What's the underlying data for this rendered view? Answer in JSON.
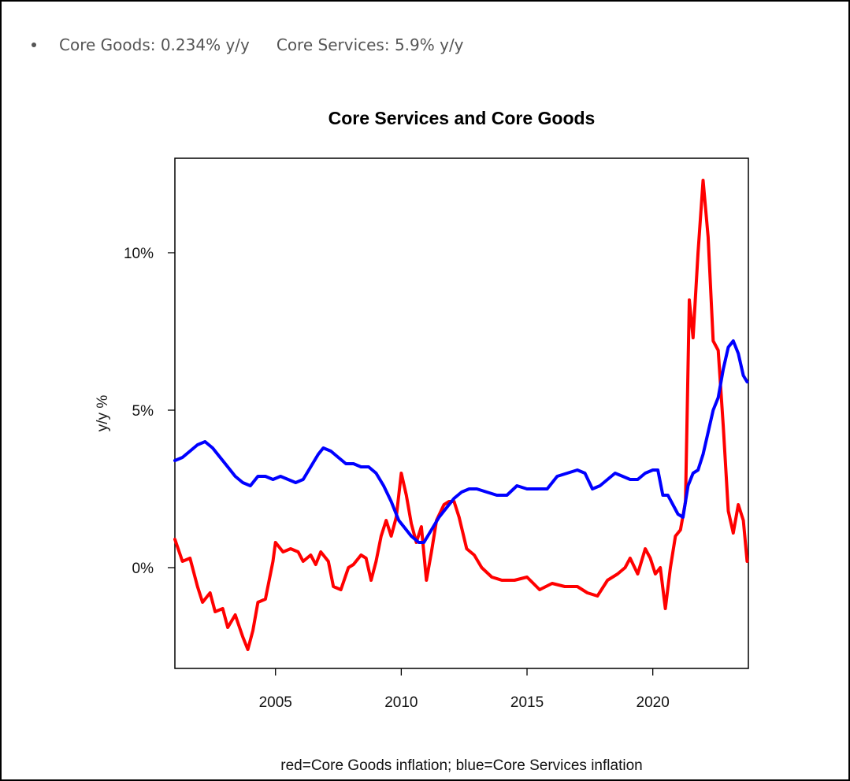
{
  "summary": {
    "goods_text": "Core Goods: 0.234% y/y",
    "services_text": "Core Services: 5.9% y/y"
  },
  "colors": {
    "goods": "#ff0000",
    "services": "#0000ff"
  },
  "chart_data": {
    "type": "line",
    "title": "Core Services and Core Goods",
    "xlabel": "red=Core Goods inflation; blue=Core Services inflation",
    "ylabel": "y/y %",
    "xlim": [
      2001,
      2023.8
    ],
    "ylim": [
      -3.2,
      13
    ],
    "xticks": [
      2005,
      2010,
      2015,
      2020
    ],
    "xtick_labels": [
      "2005",
      "2010",
      "2015",
      "2020"
    ],
    "yticks": [
      0,
      5,
      10
    ],
    "ytick_labels": [
      "0%",
      "5%",
      "10%"
    ],
    "grid": false,
    "series": [
      {
        "name": "Core Goods inflation",
        "color": "#ff0000",
        "x": [
          2001.0,
          2001.3,
          2001.6,
          2001.9,
          2002.1,
          2002.4,
          2002.6,
          2002.9,
          2003.1,
          2003.4,
          2003.7,
          2003.9,
          2004.1,
          2004.3,
          2004.6,
          2004.9,
          2005.0,
          2005.3,
          2005.6,
          2005.9,
          2006.1,
          2006.4,
          2006.6,
          2006.8,
          2007.1,
          2007.3,
          2007.6,
          2007.9,
          2008.1,
          2008.4,
          2008.6,
          2008.8,
          2009.0,
          2009.2,
          2009.4,
          2009.6,
          2009.8,
          2010.0,
          2010.2,
          2010.4,
          2010.6,
          2010.8,
          2011.0,
          2011.2,
          2011.4,
          2011.7,
          2011.9,
          2012.1,
          2012.3,
          2012.6,
          2012.9,
          2013.2,
          2013.6,
          2014.0,
          2014.5,
          2015.0,
          2015.5,
          2016.0,
          2016.5,
          2017.0,
          2017.4,
          2017.8,
          2018.2,
          2018.6,
          2018.9,
          2019.1,
          2019.4,
          2019.7,
          2019.9,
          2020.1,
          2020.3,
          2020.5,
          2020.7,
          2020.9,
          2021.1,
          2021.3,
          2021.45,
          2021.6,
          2021.8,
          2022.0,
          2022.2,
          2022.4,
          2022.6,
          2022.8,
          2023.0,
          2023.2,
          2023.4,
          2023.6,
          2023.75
        ],
        "y": [
          0.9,
          0.2,
          0.3,
          -0.6,
          -1.1,
          -0.8,
          -1.4,
          -1.3,
          -1.9,
          -1.5,
          -2.2,
          -2.6,
          -2.0,
          -1.1,
          -1.0,
          0.2,
          0.8,
          0.5,
          0.6,
          0.5,
          0.2,
          0.4,
          0.1,
          0.5,
          0.2,
          -0.6,
          -0.7,
          0.0,
          0.1,
          0.4,
          0.3,
          -0.4,
          0.2,
          1.0,
          1.5,
          1.0,
          1.6,
          3.0,
          2.3,
          1.4,
          0.8,
          1.3,
          -0.4,
          0.5,
          1.5,
          2.0,
          2.1,
          2.1,
          1.6,
          0.6,
          0.4,
          0.0,
          -0.3,
          -0.4,
          -0.4,
          -0.3,
          -0.7,
          -0.5,
          -0.6,
          -0.6,
          -0.8,
          -0.9,
          -0.4,
          -0.2,
          0.0,
          0.3,
          -0.2,
          0.6,
          0.3,
          -0.2,
          0.0,
          -1.3,
          0.0,
          1.0,
          1.2,
          2.1,
          8.5,
          7.3,
          10.0,
          12.3,
          10.5,
          7.2,
          6.9,
          4.5,
          1.8,
          1.1,
          2.0,
          1.5,
          0.2
        ]
      },
      {
        "name": "Core Services inflation",
        "color": "#0000ff",
        "x": [
          2001.0,
          2001.3,
          2001.6,
          2001.9,
          2002.2,
          2002.5,
          2002.8,
          2003.1,
          2003.4,
          2003.7,
          2004.0,
          2004.3,
          2004.6,
          2004.9,
          2005.2,
          2005.5,
          2005.8,
          2006.1,
          2006.4,
          2006.7,
          2006.9,
          2007.2,
          2007.5,
          2007.8,
          2008.1,
          2008.4,
          2008.7,
          2009.0,
          2009.3,
          2009.6,
          2009.9,
          2010.1,
          2010.4,
          2010.7,
          2010.9,
          2011.2,
          2011.5,
          2011.8,
          2012.1,
          2012.4,
          2012.7,
          2013.0,
          2013.4,
          2013.8,
          2014.2,
          2014.6,
          2015.0,
          2015.4,
          2015.8,
          2016.2,
          2016.6,
          2017.0,
          2017.3,
          2017.6,
          2017.9,
          2018.2,
          2018.5,
          2018.8,
          2019.1,
          2019.4,
          2019.7,
          2020.0,
          2020.2,
          2020.4,
          2020.6,
          2020.8,
          2021.0,
          2021.2,
          2021.4,
          2021.6,
          2021.8,
          2022.0,
          2022.2,
          2022.4,
          2022.6,
          2022.8,
          2023.0,
          2023.2,
          2023.4,
          2023.6,
          2023.75
        ],
        "y": [
          3.4,
          3.5,
          3.7,
          3.9,
          4.0,
          3.8,
          3.5,
          3.2,
          2.9,
          2.7,
          2.6,
          2.9,
          2.9,
          2.8,
          2.9,
          2.8,
          2.7,
          2.8,
          3.2,
          3.6,
          3.8,
          3.7,
          3.5,
          3.3,
          3.3,
          3.2,
          3.2,
          3.0,
          2.6,
          2.1,
          1.5,
          1.3,
          1.0,
          0.8,
          0.8,
          1.2,
          1.6,
          1.9,
          2.2,
          2.4,
          2.5,
          2.5,
          2.4,
          2.3,
          2.3,
          2.6,
          2.5,
          2.5,
          2.5,
          2.9,
          3.0,
          3.1,
          3.0,
          2.5,
          2.6,
          2.8,
          3.0,
          2.9,
          2.8,
          2.8,
          3.0,
          3.1,
          3.1,
          2.3,
          2.3,
          2.0,
          1.7,
          1.6,
          2.6,
          3.0,
          3.1,
          3.6,
          4.3,
          5.0,
          5.4,
          6.3,
          7.0,
          7.2,
          6.8,
          6.1,
          5.9
        ]
      }
    ]
  }
}
